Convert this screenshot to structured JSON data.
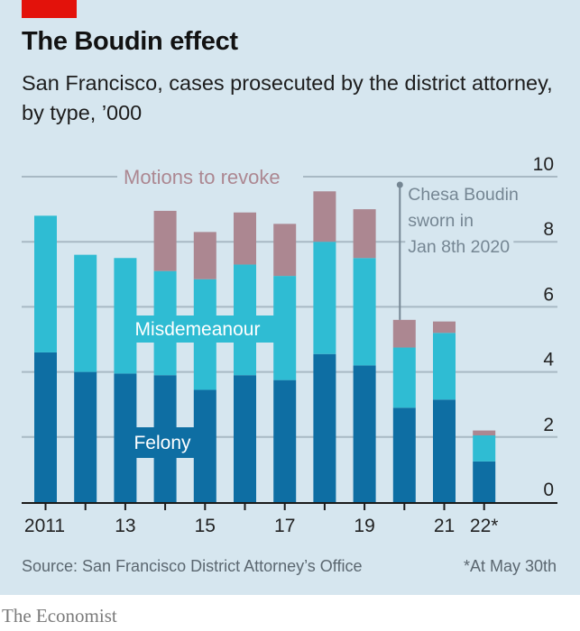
{
  "header": {
    "title": "The Boudin effect",
    "subtitle": "San Francisco, cases prosecuted by the district attorney, by type, ’000"
  },
  "footer": {
    "source": "Source: San Francisco District Attorney’s Office",
    "note": "*At May 30th",
    "brand": "The Economist"
  },
  "colors": {
    "background": "#d6e6ef",
    "felony": "#0e6ea3",
    "misdemeanour": "#2fbcd3",
    "motions": "#ac8791",
    "gridline": "#a8b9c4",
    "axis": "#1a1a1a",
    "annotation": "#758693",
    "brand_tag": "#e3120b"
  },
  "chart_data": {
    "type": "bar",
    "stacked": true,
    "title": "The Boudin effect",
    "subtitle": "San Francisco, cases prosecuted by the district attorney, by type, ’000",
    "xlabel": "",
    "ylabel": "",
    "ylim": [
      0,
      10
    ],
    "yticks": [
      "0",
      "2",
      "4",
      "6",
      "8",
      "10"
    ],
    "ytick_values": [
      0,
      2,
      4,
      6,
      8,
      10
    ],
    "y_axis_side": "right",
    "grid": true,
    "categories": [
      "2011",
      "2012",
      "2013",
      "2014",
      "2015",
      "2016",
      "2017",
      "2018",
      "2019",
      "2020",
      "2021",
      "2022"
    ],
    "xtick_labels": [
      "2011",
      "",
      "13",
      "",
      "15",
      "",
      "17",
      "",
      "19",
      "",
      "21",
      "22*"
    ],
    "series": [
      {
        "name": "Felony",
        "values": [
          4.6,
          4.0,
          3.95,
          3.9,
          3.45,
          3.9,
          3.75,
          4.55,
          4.2,
          2.9,
          3.15,
          1.25
        ]
      },
      {
        "name": "Misdemeanour",
        "values": [
          4.2,
          3.6,
          3.55,
          3.2,
          3.4,
          3.4,
          3.2,
          3.45,
          3.3,
          1.85,
          2.05,
          0.8
        ]
      },
      {
        "name": "Motions to revoke",
        "values": [
          0,
          0,
          0,
          1.85,
          1.45,
          1.6,
          1.6,
          1.55,
          1.5,
          0.85,
          0.35,
          0.15
        ]
      }
    ],
    "series_labels": {
      "felony": "Felony",
      "misdemeanour": "Misdemeanour",
      "motions": "Motions to revoke"
    },
    "annotation": {
      "lines": [
        "Chesa Boudin",
        "sworn in",
        "Jan 8th 2020"
      ],
      "category": "2020"
    }
  }
}
